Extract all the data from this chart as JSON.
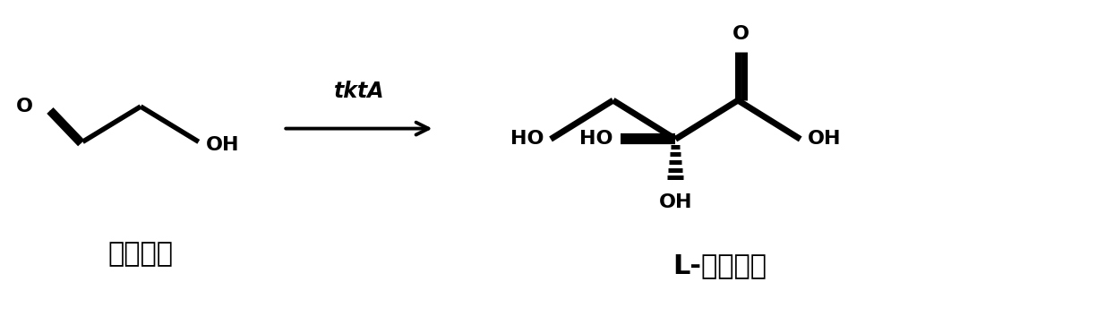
{
  "figsize": [
    12.34,
    3.63
  ],
  "dpi": 100,
  "background": "#ffffff",
  "label_left": "羟基乙醒",
  "label_right": "L-赤藓锐糖",
  "enzyme_label": "tktA",
  "lw": 4.0,
  "line_color": "#000000"
}
